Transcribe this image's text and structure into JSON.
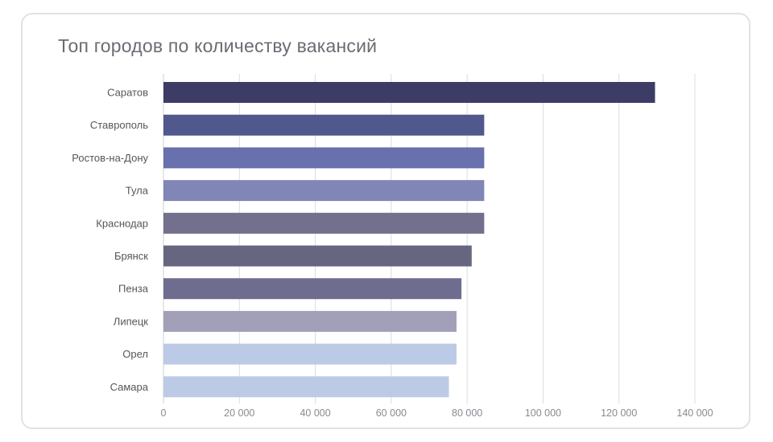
{
  "chart_data": {
    "type": "bar",
    "orientation": "horizontal",
    "title": "Топ городов по количеству вакансий",
    "categories": [
      "Саратов",
      "Ставрополь",
      "Ростов-на-Дону",
      "Тула",
      "Краснодар",
      "Брянск",
      "Пенза",
      "Липецк",
      "Орел",
      "Самара"
    ],
    "values": [
      129500,
      84500,
      84500,
      84500,
      84500,
      81200,
      78500,
      77200,
      77200,
      75200
    ],
    "colors": [
      "#3d3c66",
      "#50588e",
      "#6870ad",
      "#8086b6",
      "#72708d",
      "#676680",
      "#6f6d8f",
      "#a29fb8",
      "#bccbe5",
      "#bccbe5"
    ],
    "xlim": [
      0,
      140000
    ],
    "xticks": [
      0,
      20000,
      40000,
      60000,
      80000,
      100000,
      120000,
      140000
    ],
    "xtick_labels": [
      "0",
      "20 000",
      "40 000",
      "60 000",
      "80 000",
      "100 000",
      "120 000",
      "140 000"
    ],
    "grid": true,
    "legend": "none"
  }
}
